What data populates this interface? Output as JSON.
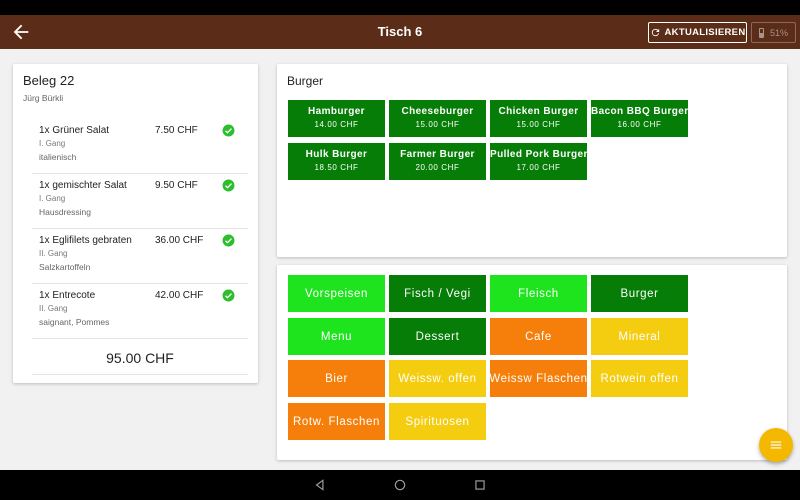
{
  "appbar": {
    "title": "Tisch 6",
    "refresh_label": "AKTUALISIEREN",
    "battery": "51%"
  },
  "receipt": {
    "title": "Beleg 22",
    "waiter": "Jürg Bürkli",
    "items": [
      {
        "name": "1x Grüner Salat",
        "price": "7.50 CHF",
        "course": "I. Gang",
        "note": "italienisch"
      },
      {
        "name": "1x gemischter Salat",
        "price": "9.50 CHF",
        "course": "I. Gang",
        "note": "Hausdressing"
      },
      {
        "name": "1x Eglifilets gebraten",
        "price": "36.00 CHF",
        "course": "II. Gang",
        "note": "Salzkartoffeln"
      },
      {
        "name": "1x Entrecote",
        "price": "42.00 CHF",
        "course": "II. Gang",
        "note": "saignant, Pommes"
      }
    ],
    "total": "95.00 CHF"
  },
  "menu": {
    "title": "Burger",
    "products": [
      {
        "name": "Hamburger",
        "price": "14.00 CHF"
      },
      {
        "name": "Cheeseburger",
        "price": "15.00 CHF"
      },
      {
        "name": "Chicken Burger",
        "price": "15.00 CHF"
      },
      {
        "name": "Bacon BBQ Burger",
        "price": "16.00 CHF"
      },
      {
        "name": "Hulk Burger",
        "price": "18.50 CHF"
      },
      {
        "name": "Farmer Burger",
        "price": "20.00 CHF"
      },
      {
        "name": "Pulled Pork Burger",
        "price": "17.00 CHF"
      }
    ]
  },
  "categories": [
    {
      "label": "Vorspeisen",
      "color": "#1ee41e"
    },
    {
      "label": "Fisch / Vegi",
      "color": "#067d06"
    },
    {
      "label": "Fleisch",
      "color": "#1ee41e"
    },
    {
      "label": "Burger",
      "color": "#067d06"
    },
    {
      "label": "Menu",
      "color": "#1ee41e"
    },
    {
      "label": "Dessert",
      "color": "#067d06"
    },
    {
      "label": "Cafe",
      "color": "#f57f0a"
    },
    {
      "label": "Mineral",
      "color": "#f4cc10"
    },
    {
      "label": "Bier",
      "color": "#f57f0a"
    },
    {
      "label": "Weissw. offen",
      "color": "#f4cc10"
    },
    {
      "label": "Weissw Flaschen",
      "color": "#f57f0a"
    },
    {
      "label": "Rotwein offen",
      "color": "#f4cc10"
    },
    {
      "label": "Rotw. Flaschen",
      "color": "#f57f0a"
    },
    {
      "label": "Spirituosen",
      "color": "#f4cc10"
    }
  ],
  "icons": {
    "back": "arrow-left-icon",
    "refresh": "refresh-icon",
    "battery": "battery-icon",
    "check": "check-circle-icon",
    "fab": "menu-icon",
    "nav": [
      "nav-back-icon",
      "nav-home-icon",
      "nav-recents-icon"
    ]
  }
}
